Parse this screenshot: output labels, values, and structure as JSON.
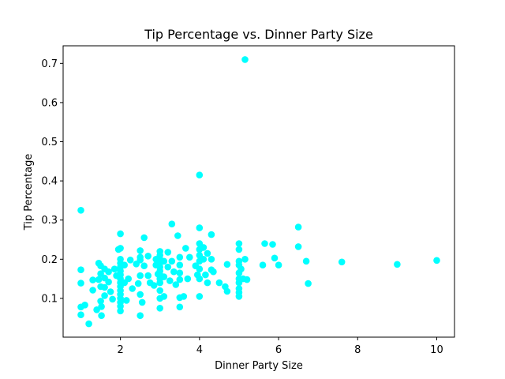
{
  "chart_data": {
    "type": "scatter",
    "title": "Tip Percentage vs. Dinner Party Size",
    "xlabel": "Dinner Party Size",
    "ylabel": "Tip Percentage",
    "xlim": [
      0.55,
      10.45
    ],
    "ylim": [
      0.001,
      0.745
    ],
    "xticks": [
      2,
      4,
      6,
      8,
      10
    ],
    "xtick_labels": [
      "2",
      "4",
      "6",
      "8",
      "10"
    ],
    "yticks": [
      0.1,
      0.2,
      0.3,
      0.4,
      0.5,
      0.6,
      0.7
    ],
    "ytick_labels": [
      "0.1",
      "0.2",
      "0.3",
      "0.4",
      "0.5",
      "0.6",
      "0.7"
    ],
    "grid": false,
    "legend": "none",
    "marker_color": "#00ffff",
    "points": [
      {
        "x": 1.0,
        "y": 0.325
      },
      {
        "x": 1.0,
        "y": 0.173
      },
      {
        "x": 1.0,
        "y": 0.139
      },
      {
        "x": 1.0,
        "y": 0.078
      },
      {
        "x": 1.0,
        "y": 0.058
      },
      {
        "x": 1.1,
        "y": 0.083
      },
      {
        "x": 1.2,
        "y": 0.035
      },
      {
        "x": 1.3,
        "y": 0.147
      },
      {
        "x": 1.3,
        "y": 0.121
      },
      {
        "x": 1.4,
        "y": 0.071
      },
      {
        "x": 1.45,
        "y": 0.19
      },
      {
        "x": 1.45,
        "y": 0.148
      },
      {
        "x": 1.5,
        "y": 0.183
      },
      {
        "x": 1.5,
        "y": 0.163
      },
      {
        "x": 1.5,
        "y": 0.13
      },
      {
        "x": 1.5,
        "y": 0.093
      },
      {
        "x": 1.52,
        "y": 0.079
      },
      {
        "x": 1.52,
        "y": 0.056
      },
      {
        "x": 1.6,
        "y": 0.175
      },
      {
        "x": 1.6,
        "y": 0.152
      },
      {
        "x": 1.6,
        "y": 0.128
      },
      {
        "x": 1.6,
        "y": 0.107
      },
      {
        "x": 1.7,
        "y": 0.168
      },
      {
        "x": 1.7,
        "y": 0.142
      },
      {
        "x": 1.75,
        "y": 0.117
      },
      {
        "x": 1.8,
        "y": 0.098
      },
      {
        "x": 1.85,
        "y": 0.175
      },
      {
        "x": 1.9,
        "y": 0.158
      },
      {
        "x": 1.95,
        "y": 0.225
      },
      {
        "x": 2.0,
        "y": 0.265
      },
      {
        "x": 2.0,
        "y": 0.228
      },
      {
        "x": 2.0,
        "y": 0.2
      },
      {
        "x": 2.0,
        "y": 0.19
      },
      {
        "x": 2.0,
        "y": 0.18
      },
      {
        "x": 2.0,
        "y": 0.17
      },
      {
        "x": 2.0,
        "y": 0.16
      },
      {
        "x": 2.0,
        "y": 0.15
      },
      {
        "x": 2.0,
        "y": 0.14
      },
      {
        "x": 2.0,
        "y": 0.13
      },
      {
        "x": 2.0,
        "y": 0.12
      },
      {
        "x": 2.0,
        "y": 0.11
      },
      {
        "x": 2.0,
        "y": 0.1
      },
      {
        "x": 2.0,
        "y": 0.09
      },
      {
        "x": 2.0,
        "y": 0.08
      },
      {
        "x": 2.0,
        "y": 0.068
      },
      {
        "x": 2.1,
        "y": 0.185
      },
      {
        "x": 2.1,
        "y": 0.14
      },
      {
        "x": 2.15,
        "y": 0.095
      },
      {
        "x": 2.2,
        "y": 0.15
      },
      {
        "x": 2.25,
        "y": 0.198
      },
      {
        "x": 2.3,
        "y": 0.125
      },
      {
        "x": 2.4,
        "y": 0.188
      },
      {
        "x": 2.45,
        "y": 0.138
      },
      {
        "x": 2.5,
        "y": 0.222
      },
      {
        "x": 2.5,
        "y": 0.205
      },
      {
        "x": 2.5,
        "y": 0.198
      },
      {
        "x": 2.5,
        "y": 0.158
      },
      {
        "x": 2.5,
        "y": 0.11
      },
      {
        "x": 2.5,
        "y": 0.056
      },
      {
        "x": 2.55,
        "y": 0.09
      },
      {
        "x": 2.6,
        "y": 0.255
      },
      {
        "x": 2.6,
        "y": 0.183
      },
      {
        "x": 2.7,
        "y": 0.208
      },
      {
        "x": 2.7,
        "y": 0.158
      },
      {
        "x": 2.75,
        "y": 0.14
      },
      {
        "x": 2.85,
        "y": 0.133
      },
      {
        "x": 2.9,
        "y": 0.2
      },
      {
        "x": 2.9,
        "y": 0.185
      },
      {
        "x": 2.95,
        "y": 0.162
      },
      {
        "x": 3.0,
        "y": 0.22
      },
      {
        "x": 3.0,
        "y": 0.21
      },
      {
        "x": 3.0,
        "y": 0.2
      },
      {
        "x": 3.0,
        "y": 0.19
      },
      {
        "x": 3.0,
        "y": 0.18
      },
      {
        "x": 3.0,
        "y": 0.17
      },
      {
        "x": 3.0,
        "y": 0.16
      },
      {
        "x": 3.0,
        "y": 0.15
      },
      {
        "x": 3.0,
        "y": 0.14
      },
      {
        "x": 3.0,
        "y": 0.12
      },
      {
        "x": 3.0,
        "y": 0.1
      },
      {
        "x": 3.0,
        "y": 0.075
      },
      {
        "x": 3.1,
        "y": 0.195
      },
      {
        "x": 3.1,
        "y": 0.155
      },
      {
        "x": 3.1,
        "y": 0.105
      },
      {
        "x": 3.2,
        "y": 0.218
      },
      {
        "x": 3.2,
        "y": 0.18
      },
      {
        "x": 3.25,
        "y": 0.145
      },
      {
        "x": 3.3,
        "y": 0.29
      },
      {
        "x": 3.3,
        "y": 0.195
      },
      {
        "x": 3.35,
        "y": 0.168
      },
      {
        "x": 3.4,
        "y": 0.135
      },
      {
        "x": 3.45,
        "y": 0.26
      },
      {
        "x": 3.5,
        "y": 0.205
      },
      {
        "x": 3.5,
        "y": 0.185
      },
      {
        "x": 3.5,
        "y": 0.165
      },
      {
        "x": 3.5,
        "y": 0.148
      },
      {
        "x": 3.5,
        "y": 0.102
      },
      {
        "x": 3.5,
        "y": 0.078
      },
      {
        "x": 3.6,
        "y": 0.105
      },
      {
        "x": 3.65,
        "y": 0.228
      },
      {
        "x": 3.7,
        "y": 0.15
      },
      {
        "x": 3.75,
        "y": 0.205
      },
      {
        "x": 3.9,
        "y": 0.183
      },
      {
        "x": 3.95,
        "y": 0.16
      },
      {
        "x": 4.0,
        "y": 0.415
      },
      {
        "x": 4.0,
        "y": 0.28
      },
      {
        "x": 4.0,
        "y": 0.24
      },
      {
        "x": 4.0,
        "y": 0.225
      },
      {
        "x": 4.0,
        "y": 0.21
      },
      {
        "x": 4.0,
        "y": 0.195
      },
      {
        "x": 4.0,
        "y": 0.175
      },
      {
        "x": 4.0,
        "y": 0.15
      },
      {
        "x": 4.0,
        "y": 0.105
      },
      {
        "x": 4.1,
        "y": 0.23
      },
      {
        "x": 4.1,
        "y": 0.2
      },
      {
        "x": 4.15,
        "y": 0.16
      },
      {
        "x": 4.2,
        "y": 0.215
      },
      {
        "x": 4.2,
        "y": 0.14
      },
      {
        "x": 4.3,
        "y": 0.263
      },
      {
        "x": 4.3,
        "y": 0.2
      },
      {
        "x": 4.3,
        "y": 0.173
      },
      {
        "x": 4.35,
        "y": 0.168
      },
      {
        "x": 4.5,
        "y": 0.14
      },
      {
        "x": 4.65,
        "y": 0.13
      },
      {
        "x": 4.7,
        "y": 0.187
      },
      {
        "x": 4.7,
        "y": 0.118
      },
      {
        "x": 5.0,
        "y": 0.24
      },
      {
        "x": 5.0,
        "y": 0.225
      },
      {
        "x": 5.0,
        "y": 0.195
      },
      {
        "x": 5.0,
        "y": 0.185
      },
      {
        "x": 5.0,
        "y": 0.165
      },
      {
        "x": 5.0,
        "y": 0.15
      },
      {
        "x": 5.0,
        "y": 0.14
      },
      {
        "x": 5.0,
        "y": 0.125
      },
      {
        "x": 5.0,
        "y": 0.115
      },
      {
        "x": 5.0,
        "y": 0.105
      },
      {
        "x": 5.05,
        "y": 0.175
      },
      {
        "x": 5.1,
        "y": 0.15
      },
      {
        "x": 5.15,
        "y": 0.71
      },
      {
        "x": 5.15,
        "y": 0.2
      },
      {
        "x": 5.2,
        "y": 0.148
      },
      {
        "x": 5.6,
        "y": 0.185
      },
      {
        "x": 5.65,
        "y": 0.24
      },
      {
        "x": 5.85,
        "y": 0.238
      },
      {
        "x": 5.9,
        "y": 0.203
      },
      {
        "x": 6.0,
        "y": 0.185
      },
      {
        "x": 6.5,
        "y": 0.282
      },
      {
        "x": 6.5,
        "y": 0.232
      },
      {
        "x": 6.7,
        "y": 0.195
      },
      {
        "x": 6.75,
        "y": 0.138
      },
      {
        "x": 7.6,
        "y": 0.193
      },
      {
        "x": 9.0,
        "y": 0.187
      },
      {
        "x": 10.0,
        "y": 0.197
      }
    ]
  }
}
